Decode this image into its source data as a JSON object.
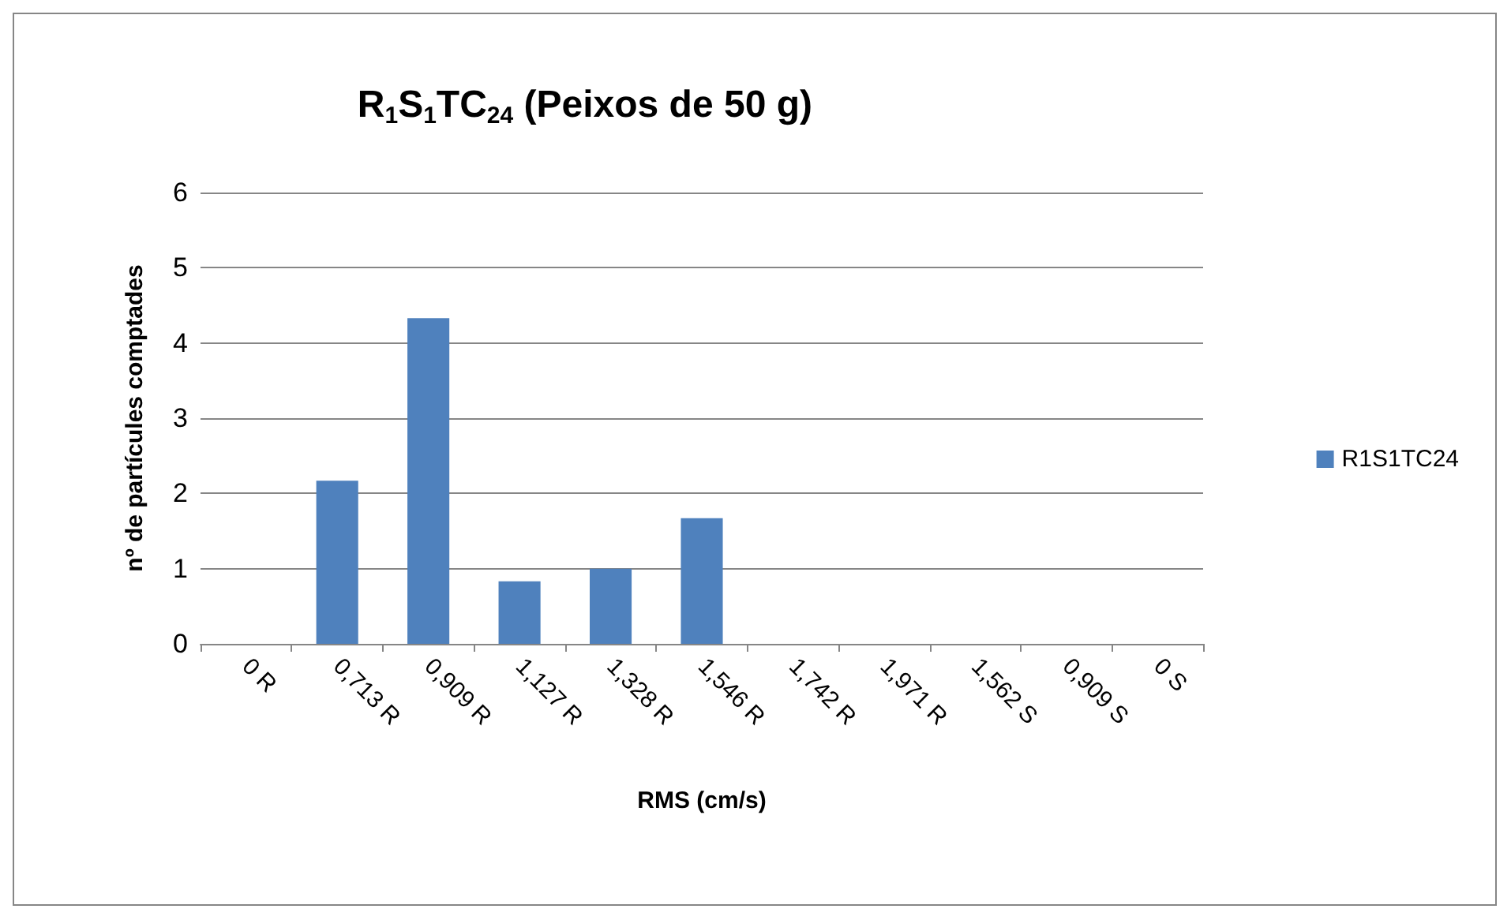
{
  "chart_data": {
    "type": "bar",
    "title": "R$_{1}$S$_{1}$TC$_{24}$ (Peixos de 50 g)",
    "xlabel": "RMS (cm/s)",
    "ylabel": "nº de partícules comptades",
    "categories": [
      "0 R",
      "0,713 R",
      "0,909 R",
      "1,127 R",
      "1,328 R",
      "1,546 R",
      "1,742 R",
      "1,971 R",
      "1,562 S",
      "0,909 S",
      "0 S"
    ],
    "series": [
      {
        "name": "R1S1TC24",
        "color": "#4f81bd",
        "values": [
          0,
          2.17,
          4.33,
          0.83,
          1,
          1.67,
          0,
          0,
          0,
          0,
          0
        ]
      }
    ],
    "ylim": [
      0,
      6
    ],
    "yticks": [
      0,
      1,
      2,
      3,
      4,
      5,
      6
    ],
    "grid": "y",
    "legend": "right"
  }
}
